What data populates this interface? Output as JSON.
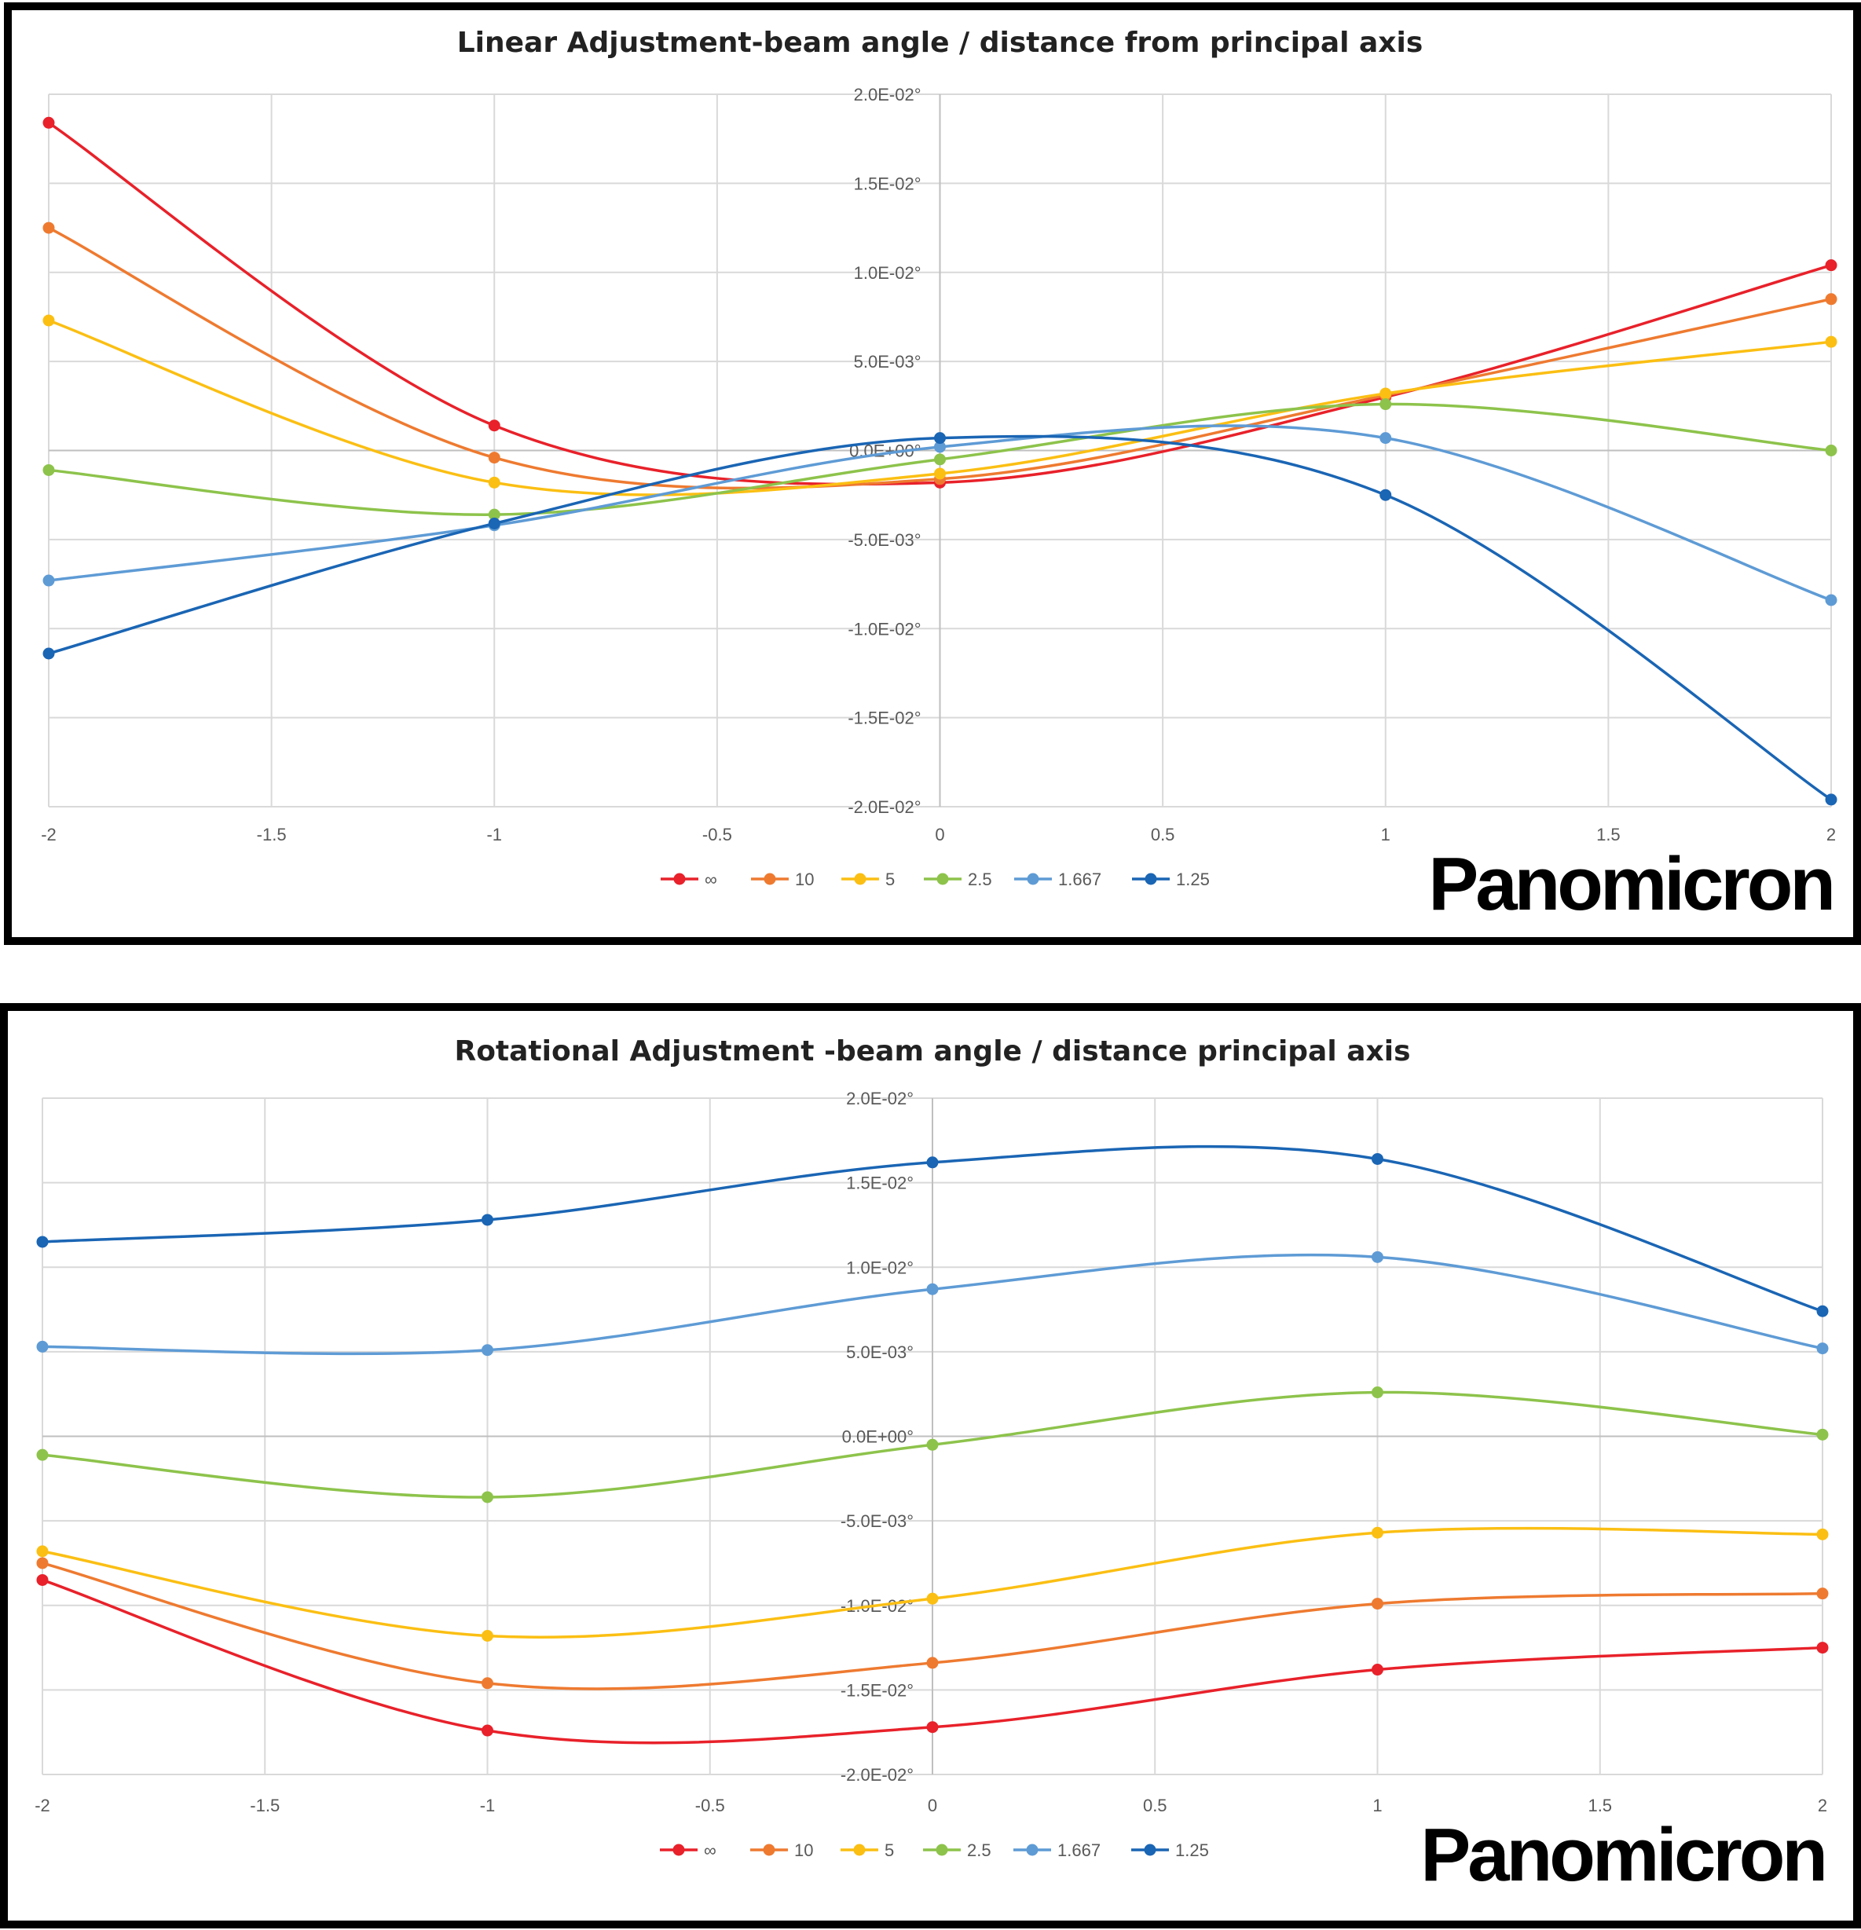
{
  "colors": {
    "∞": "#e8212a",
    "10": "#ee7a30",
    "5": "#fbbf13",
    "2.5": "#8dc34b",
    "1.667": "#5e9bd5",
    "1.25": "#1a65b4"
  },
  "logo": "Panomicron",
  "chart_data": [
    {
      "type": "line",
      "title": "Linear Adjustment-beam angle / distance from principal axis",
      "x": [
        -2,
        -1,
        0,
        1,
        2
      ],
      "x_ticks": [
        "-2",
        "-1.5",
        "-1",
        "-0.5",
        "0",
        "0.5",
        "1",
        "1.5",
        "2"
      ],
      "x_tick_values": [
        -2,
        -1.5,
        -1,
        -0.5,
        0,
        0.5,
        1,
        1.5,
        2
      ],
      "y_ticks": [
        "2.0E-02°",
        "1.5E-02°",
        "1.0E-02°",
        "5.0E-03°",
        "0.0E+00°",
        "-5.0E-03°",
        "-1.0E-02°",
        "-1.5E-02°",
        "-2.0E-02°"
      ],
      "y_tick_values": [
        0.02,
        0.015,
        0.01,
        0.005,
        0,
        -0.005,
        -0.01,
        -0.015,
        -0.02
      ],
      "xlim": [
        -2,
        2
      ],
      "ylim": [
        -0.02,
        0.02
      ],
      "grid": true,
      "smooth": true,
      "legend_position": "bottom",
      "series": [
        {
          "name": "∞",
          "values": [
            0.0184,
            0.0014,
            -0.0018,
            0.003,
            0.0104
          ]
        },
        {
          "name": "10",
          "values": [
            0.0125,
            -0.0004,
            -0.0016,
            0.0031,
            0.0085
          ]
        },
        {
          "name": "5",
          "values": [
            0.0073,
            -0.0018,
            -0.0013,
            0.0032,
            0.0061
          ]
        },
        {
          "name": "2.5",
          "values": [
            -0.0011,
            -0.0036,
            -0.0005,
            0.0026,
            0.0
          ]
        },
        {
          "name": "1.667",
          "values": [
            -0.0073,
            -0.0042,
            0.0002,
            0.0007,
            -0.0084
          ]
        },
        {
          "name": "1.25",
          "values": [
            -0.0114,
            -0.0041,
            0.0007,
            -0.0025,
            -0.0196
          ]
        }
      ]
    },
    {
      "type": "line",
      "title": "Rotational Adjustment  -beam angle / distance principal axis",
      "x": [
        -2,
        -1,
        0,
        1,
        2
      ],
      "x_ticks": [
        "-2",
        "-1.5",
        "-1",
        "-0.5",
        "0",
        "0.5",
        "1",
        "1.5",
        "2"
      ],
      "x_tick_values": [
        -2,
        -1.5,
        -1,
        -0.5,
        0,
        0.5,
        1,
        1.5,
        2
      ],
      "y_ticks": [
        "2.0E-02°",
        "1.5E-02°",
        "1.0E-02°",
        "5.0E-03°",
        "0.0E+00°",
        "-5.0E-03°",
        "-1.0E-02°",
        "-1.5E-02°",
        "-2.0E-02°"
      ],
      "y_tick_values": [
        0.02,
        0.015,
        0.01,
        0.005,
        0,
        -0.005,
        -0.01,
        -0.015,
        -0.02
      ],
      "xlim": [
        -2,
        2
      ],
      "ylim": [
        -0.02,
        0.02
      ],
      "grid": true,
      "smooth": true,
      "legend_position": "bottom",
      "series": [
        {
          "name": "∞",
          "values": [
            -0.0085,
            -0.0174,
            -0.0172,
            -0.0138,
            -0.0125
          ]
        },
        {
          "name": "10",
          "values": [
            -0.0075,
            -0.0146,
            -0.0134,
            -0.0099,
            -0.0093
          ]
        },
        {
          "name": "5",
          "values": [
            -0.0068,
            -0.0118,
            -0.0096,
            -0.0057,
            -0.0058
          ]
        },
        {
          "name": "2.5",
          "values": [
            -0.0011,
            -0.0036,
            -0.0005,
            0.0026,
            0.0001
          ]
        },
        {
          "name": "1.667",
          "values": [
            0.0053,
            0.0051,
            0.0087,
            0.0106,
            0.0052
          ]
        },
        {
          "name": "1.25",
          "values": [
            0.0115,
            0.0128,
            0.0162,
            0.0164,
            0.0074
          ]
        }
      ]
    }
  ]
}
